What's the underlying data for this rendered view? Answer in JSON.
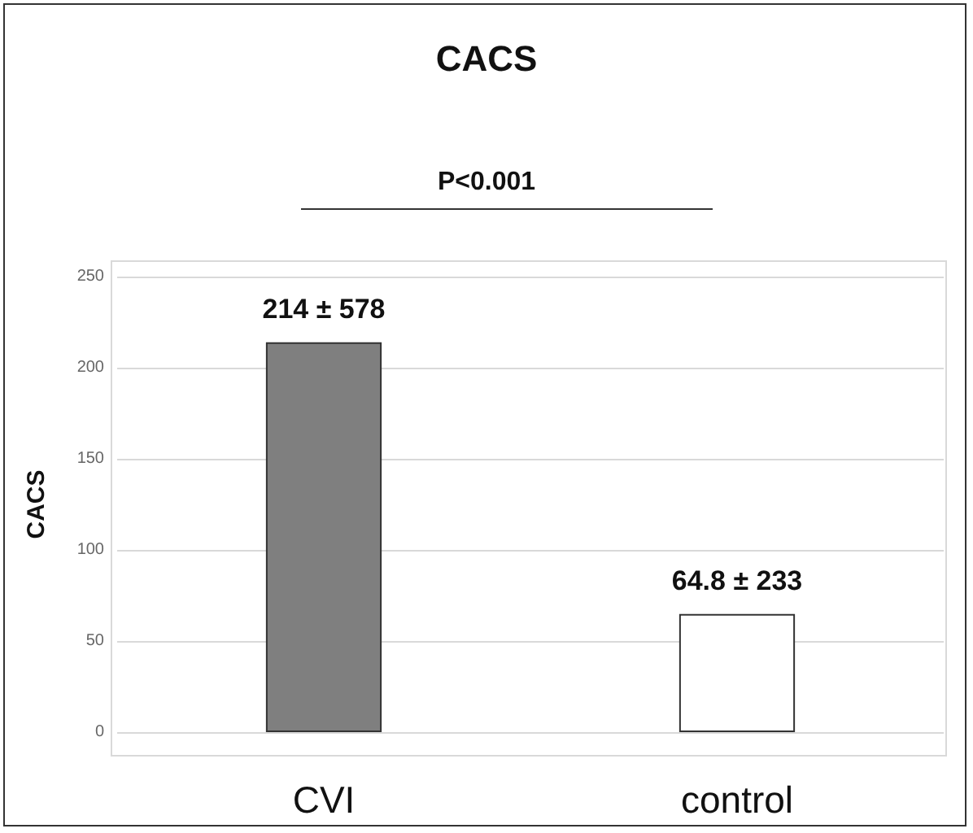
{
  "chart_data": {
    "type": "bar",
    "title": "CACS",
    "ylabel": "CACS",
    "categories": [
      "CVI",
      "control"
    ],
    "values": [
      214,
      64.8
    ],
    "colors": [
      "#7f7f7f",
      "#ffffff"
    ],
    "value_labels": [
      "214 ± 578",
      "64.8 ± 233"
    ],
    "annotations": [
      "P<0.001"
    ],
    "ylim": [
      0,
      250
    ],
    "yticks": [
      0,
      50,
      100,
      150,
      200,
      250
    ],
    "grid": "y"
  }
}
